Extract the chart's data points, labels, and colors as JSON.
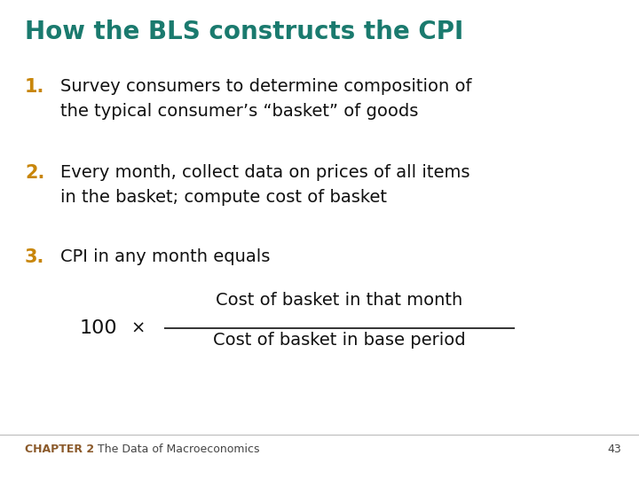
{
  "title": "How the BLS constructs the CPI",
  "title_color": "#1a7a6e",
  "title_fontsize": 20,
  "bg_color": "#ffffff",
  "number_color": "#c8860a",
  "number_fontsize": 15,
  "text_color": "#111111",
  "text_fontsize": 14,
  "items": [
    {
      "num": "1.",
      "line1": "Survey consumers to determine composition of",
      "line2": "the typical consumer’s “basket” of goods"
    },
    {
      "num": "2.",
      "line1": "Every month, collect data on prices of all items",
      "line2": "in the basket; compute cost of basket"
    },
    {
      "num": "3.",
      "line1": "CPI in any month equals",
      "line2": ""
    }
  ],
  "formula_100": "100",
  "formula_times": "×",
  "formula_numerator": "Cost of basket in that month",
  "formula_denominator": "Cost of basket in base period",
  "formula_fontsize": 14,
  "formula_100_fontsize": 16,
  "footer_chapter": "CHAPTER 2",
  "footer_title": "The Data of Macroeconomics",
  "footer_page": "43",
  "footer_fontsize": 9,
  "footer_chapter_color": "#8b5a2b",
  "footer_text_color": "#444444"
}
